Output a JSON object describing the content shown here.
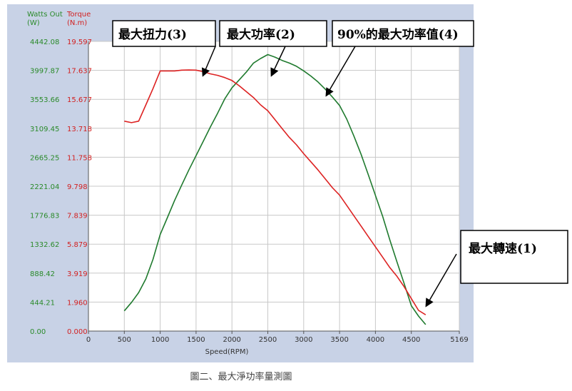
{
  "chart_data": {
    "type": "line",
    "xlabel": "Speed(RPM)",
    "xlim": [
      0,
      5169
    ],
    "x_ticks": [
      "0",
      "500",
      "1000",
      "1500",
      "2000",
      "2500",
      "3000",
      "3500",
      "4000",
      "4500",
      "5169"
    ],
    "y_left": {
      "header": [
        "Watts Out",
        "(W)"
      ],
      "ticks": [
        "0.00",
        "444.21",
        "888.42",
        "1332.62",
        "1776.83",
        "2221.04",
        "2665.25",
        "3109.45",
        "3553.66",
        "3997.87",
        "4442.08"
      ],
      "ylim": [
        0,
        4442.08
      ],
      "color": "#2a8a2a"
    },
    "y_right": {
      "header": [
        "Torque",
        "(N.m)"
      ],
      "ticks": [
        "0.000",
        "1.960",
        "3.919",
        "5.879",
        "7.839",
        "9.798",
        "11.758",
        "13.718",
        "15.677",
        "17.637",
        "19.597"
      ],
      "ylim": [
        0,
        19.597
      ],
      "color": "#d22020"
    },
    "series": [
      {
        "name": "Watts Out",
        "axis": "left",
        "color": "#1f7a2e",
        "x": [
          500,
          600,
          700,
          800,
          900,
          1000,
          1100,
          1200,
          1300,
          1400,
          1500,
          1600,
          1700,
          1800,
          1900,
          2000,
          2100,
          2200,
          2300,
          2400,
          2500,
          2600,
          2700,
          2800,
          2900,
          3000,
          3100,
          3200,
          3300,
          3400,
          3500,
          3600,
          3700,
          3800,
          3900,
          4000,
          4100,
          4200,
          4300,
          4400,
          4500,
          4600,
          4700
        ],
        "y": [
          310,
          440,
          590,
          800,
          1100,
          1480,
          1740,
          2000,
          2240,
          2470,
          2690,
          2910,
          3130,
          3340,
          3560,
          3730,
          3850,
          3970,
          4110,
          4180,
          4240,
          4200,
          4150,
          4110,
          4060,
          3990,
          3910,
          3820,
          3710,
          3590,
          3460,
          3250,
          2990,
          2710,
          2400,
          2080,
          1760,
          1400,
          1060,
          730,
          390,
          230,
          100
        ]
      },
      {
        "name": "Torque",
        "axis": "right",
        "color": "#dd2222",
        "x": [
          500,
          600,
          700,
          800,
          900,
          1000,
          1100,
          1200,
          1300,
          1400,
          1500,
          1600,
          1700,
          1800,
          1900,
          2000,
          2100,
          2200,
          2300,
          2400,
          2500,
          2600,
          2700,
          2800,
          2900,
          3000,
          3100,
          3200,
          3300,
          3400,
          3500,
          3600,
          3700,
          3800,
          3900,
          4000,
          4100,
          4200,
          4300,
          4400,
          4500,
          4600,
          4700
        ],
        "y": [
          14.2,
          14.1,
          14.2,
          15.3,
          16.4,
          17.6,
          17.6,
          17.6,
          17.65,
          17.66,
          17.65,
          17.55,
          17.4,
          17.3,
          17.15,
          16.95,
          16.6,
          16.2,
          15.8,
          15.3,
          14.9,
          14.3,
          13.7,
          13.1,
          12.6,
          12.0,
          11.45,
          10.9,
          10.3,
          9.7,
          9.2,
          8.5,
          7.8,
          7.1,
          6.4,
          5.7,
          5.0,
          4.3,
          3.7,
          3.0,
          2.2,
          1.4,
          1.1
        ]
      }
    ],
    "annotations": [
      {
        "label": "最大扭力(3)"
      },
      {
        "label": "最大功率(2)"
      },
      {
        "label": "90%的最大功率值(4)"
      },
      {
        "label": "最大轉速(1)"
      }
    ],
    "caption": "圖二、最大淨功率量測圖"
  },
  "colors": {
    "frame_bg": "#c8d2e6",
    "plot_bg": "#ffffff",
    "grid": "#c8c8c8",
    "axis": "#555555"
  }
}
